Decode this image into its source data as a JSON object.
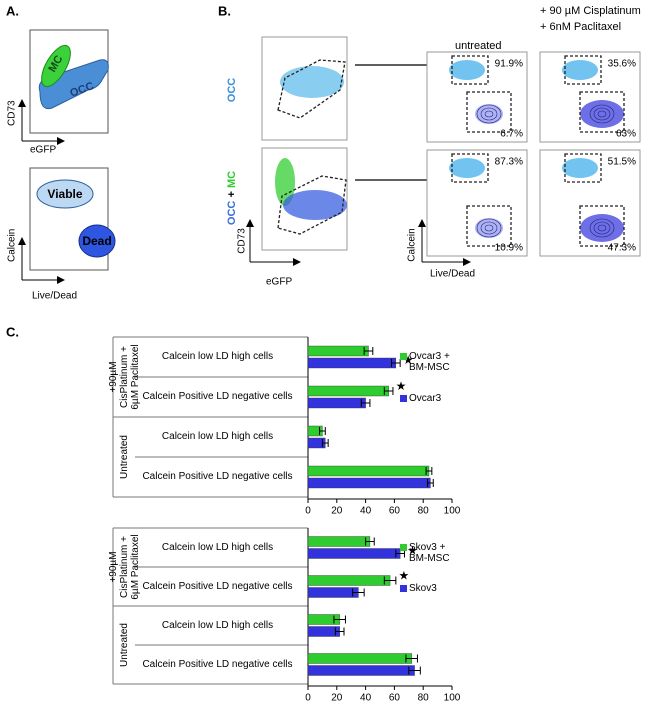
{
  "panels": {
    "A": {
      "label": "A.",
      "mc": "MC",
      "occ": "OCC",
      "y1": "CD73",
      "x1": "eGFP",
      "viable": "Viable",
      "dead": "Dead",
      "y2": "Calcein",
      "x2": "Live/Dead"
    },
    "B": {
      "label": "B.",
      "row1": "OCC",
      "row2": {
        "occ": "OCC",
        "plus": "+",
        "mc": "MC"
      },
      "y1": "CD73",
      "x1": "eGFP",
      "col1": "untreated",
      "col2": [
        "+ 90 µM Cisplatinum",
        "+ 6nM Paclitaxel"
      ],
      "y2": "Calcein",
      "x2": "Live/Dead",
      "gates": [
        {
          "top": "91.9%",
          "bottom": "6.7%"
        },
        {
          "top": "35.6%",
          "bottom": "63%"
        },
        {
          "top": "87.3%",
          "bottom": "10.9%"
        },
        {
          "top": "51.5%",
          "bottom": "47.3%"
        }
      ]
    },
    "C": {
      "label": "C."
    }
  },
  "chart_data": [
    {
      "type": "bar",
      "orientation": "horizontal",
      "groups": [
        {
          "name": "+90µM CisPlatinum + 6µM Paclitaxel",
          "categories": [
            "Calcein low LD high cells",
            "Calcein Positive LD negative cells"
          ]
        },
        {
          "name": "Untreated",
          "categories": [
            "Calcein low LD high cells",
            "Calcein Positive LD negative cells"
          ]
        }
      ],
      "series": [
        {
          "name": "Ovcar3 + BM-MSC",
          "color": "#2ecc2e",
          "values": [
            42,
            56,
            10,
            84
          ],
          "errors": [
            3,
            3,
            2,
            2
          ]
        },
        {
          "name": "Ovcar3",
          "color": "#3333dd",
          "values": [
            61,
            40,
            12,
            85
          ],
          "errors": [
            3,
            3,
            2,
            2
          ]
        }
      ],
      "annotations": [
        "★",
        "★",
        null,
        null
      ],
      "xlim": [
        0,
        100
      ],
      "xticks": [
        0,
        20,
        40,
        60,
        80,
        100
      ]
    },
    {
      "type": "bar",
      "orientation": "horizontal",
      "groups": [
        {
          "name": "+90µM CisPlatinum + 6µM Paclitaxel",
          "categories": [
            "Calcein low LD high cells",
            "Calcein Positive LD negative cells"
          ]
        },
        {
          "name": "Untreated",
          "categories": [
            "Calcein low LD high cells",
            "Calcein Positive LD negative cells"
          ]
        }
      ],
      "series": [
        {
          "name": "Skov3 + BM-MSC",
          "color": "#2ecc2e",
          "values": [
            43,
            57,
            22,
            72
          ],
          "errors": [
            3,
            4,
            4,
            4
          ]
        },
        {
          "name": "Skov3",
          "color": "#3333dd",
          "values": [
            64,
            35,
            22,
            74
          ],
          "errors": [
            3,
            4,
            3,
            4
          ]
        }
      ],
      "annotations": [
        "★",
        "★",
        null,
        null
      ],
      "xlim": [
        0,
        100
      ],
      "xticks": [
        0,
        20,
        40,
        60,
        80,
        100
      ]
    }
  ]
}
